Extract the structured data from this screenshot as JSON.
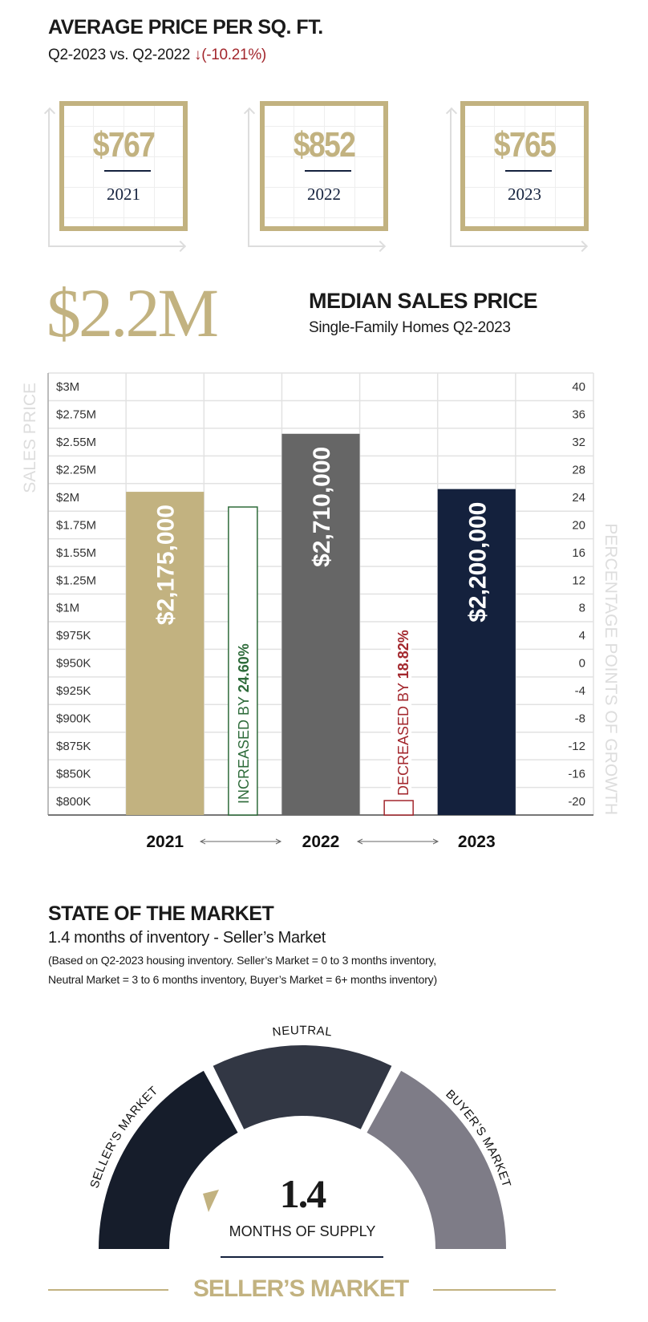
{
  "price_per_sqft": {
    "title": "AVERAGE PRICE  PER SQ. FT.",
    "comparison": "Q2-2023 vs. Q2-2022",
    "change": "↓(-10.21%)",
    "cards": [
      {
        "value": "$767",
        "year": "2021"
      },
      {
        "value": "$852",
        "year": "2022"
      },
      {
        "value": "$765",
        "year": "2023"
      }
    ]
  },
  "median": {
    "big_value": "$2.2M",
    "title": "MEDIAN SALES PRICE",
    "subtitle": "Single-Family Homes Q2-2023"
  },
  "chart_data": {
    "type": "bar",
    "ylabel": "SALES PRICE",
    "y2label": "PERCENTAGE POINTS OF GROWTH",
    "y_ticks": [
      "$3M",
      "$2.75M",
      "$2.55M",
      "$2.25M",
      "$2M",
      "$1.75M",
      "$1.55M",
      "$1.25M",
      "$1M",
      "$975K",
      "$950K",
      "$925K",
      "$900K",
      "$875K",
      "$850K",
      "$800K"
    ],
    "y_tick_values": [
      3000000,
      2750000,
      2550000,
      2250000,
      2000000,
      1750000,
      1550000,
      1250000,
      1000000,
      975000,
      950000,
      925000,
      900000,
      875000,
      850000,
      800000
    ],
    "y2_ticks": [
      "40",
      "36",
      "32",
      "28",
      "24",
      "20",
      "16",
      "12",
      "8",
      "4",
      "0",
      "-4",
      "-8",
      "-12",
      "-16",
      "-20"
    ],
    "y2_tick_values": [
      40,
      36,
      32,
      28,
      24,
      20,
      16,
      12,
      8,
      4,
      0,
      -4,
      -8,
      -12,
      -16,
      -20
    ],
    "grid": true,
    "categories": [
      "2021",
      "2022",
      "2023"
    ],
    "values": [
      2175000,
      2710000,
      2200000
    ],
    "value_labels": [
      "$2,175,000",
      "$2,710,000",
      "$2,200,000"
    ],
    "bar_colors": [
      "#c2b280",
      "#666666",
      "#14213d"
    ],
    "growth": [
      {
        "between": [
          "2021",
          "2022"
        ],
        "value": 24.6,
        "prefix": "INCREASED BY ",
        "label": "24.60%",
        "color": "#2e6b3a"
      },
      {
        "between": [
          "2022",
          "2023"
        ],
        "value": -18.82,
        "prefix": "DECREASED BY ",
        "label": "18.82%",
        "color": "#a3272d"
      }
    ]
  },
  "market": {
    "title": "STATE OF THE MARKET",
    "subtitle": "1.4 months of inventory - Seller’s Market",
    "note1": "(Based on Q2-2023 housing inventory. Seller’s Market = 0 to 3 months inventory,",
    "note2": "Neutral Market = 3 to 6 months inventory, Buyer’s Market = 6+ months inventory)",
    "segments": [
      {
        "label": "SELLER’S MARKET",
        "color": "#161d2b"
      },
      {
        "label": "NEUTRAL",
        "color": "#323744"
      },
      {
        "label": "BUYER’S MARKET",
        "color": "#7e7c87"
      }
    ],
    "value": "1.4",
    "value_label": "MONTHS OF SUPPLY",
    "verdict": "SELLER’S MARKET",
    "accent": "#c2b280"
  }
}
